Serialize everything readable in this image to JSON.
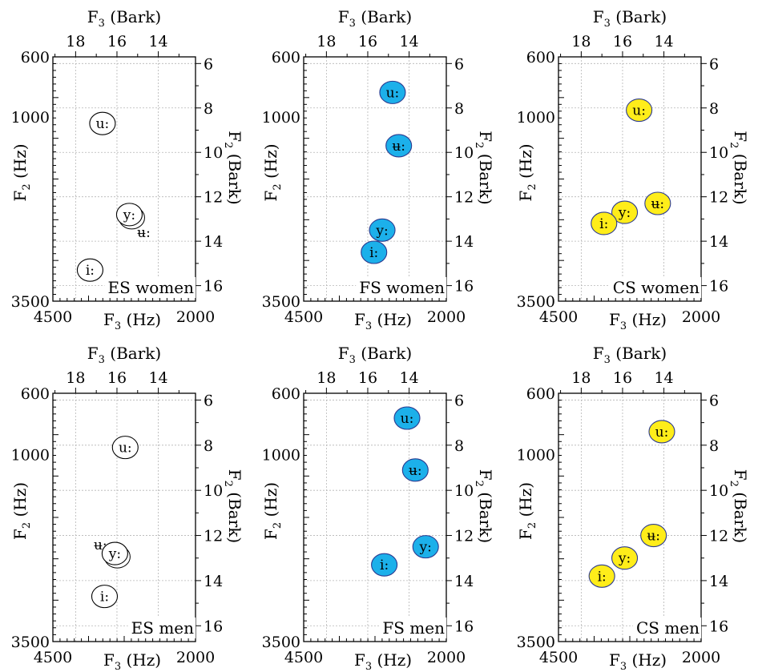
{
  "palette": {
    "ES": "#ffffff",
    "FS": "#1cb0ea",
    "CS": "#ffed1a",
    "edge_filled": "#2b3a8f",
    "edge_plain": "#000000"
  },
  "chart_data": [
    {
      "type": "scatter",
      "label": "ES women",
      "group": "ES",
      "x_title": "F",
      "x_sub": "3",
      "x_unit": " (Hz)",
      "x_top_title": "F",
      "x_top_sub": "3",
      "x_top_unit": " (Bark)",
      "y_title": "F",
      "y_sub": "2",
      "y_unit": " (Hz)",
      "y_right_title": "F",
      "y_right_sub": "2",
      "y_right_unit": " (Bark)",
      "x_ticks": [
        "4500",
        "2000"
      ],
      "y_ticks": [
        "600",
        "1000",
        "3500"
      ],
      "bark_top_ticks": [
        "18",
        "16",
        "14"
      ],
      "bark_right_ticks": [
        "6",
        "8",
        "10",
        "12",
        "14",
        "16"
      ],
      "bark_x_range": [
        19.1,
        12.2
      ],
      "bark_y_range": [
        5.7,
        16.7
      ],
      "points": [
        {
          "vowel": "u:",
          "f3_bark": 16.7,
          "f2_bark": 8.7,
          "marker": "ellipse"
        },
        {
          "vowel": "y:",
          "f3_bark": 15.4,
          "f2_bark": 12.8,
          "marker": "ellipse-double"
        },
        {
          "vowel": "ʉ:",
          "f3_bark": 14.7,
          "f2_bark": 13.6,
          "marker": "none"
        },
        {
          "vowel": "i:",
          "f3_bark": 17.3,
          "f2_bark": 15.3,
          "marker": "ellipse"
        }
      ]
    },
    {
      "type": "scatter",
      "label": "FS women",
      "group": "FS",
      "x_title": "F",
      "x_sub": "3",
      "x_unit": " (Hz)",
      "x_top_title": "F",
      "x_top_sub": "3",
      "x_top_unit": " (Bark)",
      "y_title": "F",
      "y_sub": "2",
      "y_unit": " (Hz)",
      "y_right_title": "F",
      "y_right_sub": "2",
      "y_right_unit": " (Bark)",
      "x_ticks": [
        "4500",
        "2000"
      ],
      "y_ticks": [
        "600",
        "1000",
        "3500"
      ],
      "bark_top_ticks": [
        "18",
        "16",
        "14"
      ],
      "bark_right_ticks": [
        "6",
        "8",
        "10",
        "12",
        "14",
        "16"
      ],
      "bark_x_range": [
        19.1,
        12.2
      ],
      "bark_y_range": [
        5.7,
        16.7
      ],
      "points": [
        {
          "vowel": "u:",
          "f3_bark": 14.8,
          "f2_bark": 7.3,
          "marker": "filled"
        },
        {
          "vowel": "ʉ:",
          "f3_bark": 14.5,
          "f2_bark": 9.7,
          "marker": "filled"
        },
        {
          "vowel": "y:",
          "f3_bark": 15.3,
          "f2_bark": 13.5,
          "marker": "filled"
        },
        {
          "vowel": "i:",
          "f3_bark": 15.7,
          "f2_bark": 14.5,
          "marker": "filled"
        }
      ]
    },
    {
      "type": "scatter",
      "label": "CS women",
      "group": "CS",
      "x_title": "F",
      "x_sub": "3",
      "x_unit": " (Hz)",
      "x_top_title": "F",
      "x_top_sub": "3",
      "x_top_unit": " (Bark)",
      "y_title": "F",
      "y_sub": "2",
      "y_unit": " (Hz)",
      "y_right_title": "F",
      "y_right_sub": "2",
      "y_right_unit": " (Bark)",
      "x_ticks": [
        "4500",
        "2000"
      ],
      "y_ticks": [
        "600",
        "1000",
        "3500"
      ],
      "bark_top_ticks": [
        "18",
        "16",
        "14"
      ],
      "bark_right_ticks": [
        "6",
        "8",
        "10",
        "12",
        "14",
        "16"
      ],
      "bark_x_range": [
        19.1,
        12.2
      ],
      "bark_y_range": [
        5.7,
        16.7
      ],
      "points": [
        {
          "vowel": "u:",
          "f3_bark": 15.2,
          "f2_bark": 8.1,
          "marker": "filled"
        },
        {
          "vowel": "ʉ:",
          "f3_bark": 14.3,
          "f2_bark": 12.3,
          "marker": "filled"
        },
        {
          "vowel": "y:",
          "f3_bark": 15.9,
          "f2_bark": 12.7,
          "marker": "filled"
        },
        {
          "vowel": "i:",
          "f3_bark": 16.9,
          "f2_bark": 13.2,
          "marker": "filled"
        }
      ]
    },
    {
      "type": "scatter",
      "label": "ES men",
      "group": "ES",
      "x_title": "F",
      "x_sub": "3",
      "x_unit": " (Hz)",
      "x_top_title": "F",
      "x_top_sub": "3",
      "x_top_unit": " (Bark)",
      "y_title": "F",
      "y_sub": "2",
      "y_unit": " (Hz)",
      "y_right_title": "F",
      "y_right_sub": "2",
      "y_right_unit": " (Bark)",
      "x_ticks": [
        "4500",
        "2000"
      ],
      "y_ticks": [
        "600",
        "1000",
        "3500"
      ],
      "bark_top_ticks": [
        "18",
        "16",
        "14"
      ],
      "bark_right_ticks": [
        "6",
        "8",
        "10",
        "12",
        "14",
        "16"
      ],
      "bark_x_range": [
        19.1,
        12.2
      ],
      "bark_y_range": [
        5.7,
        16.7
      ],
      "points": [
        {
          "vowel": "u:",
          "f3_bark": 15.6,
          "f2_bark": 8.1,
          "marker": "ellipse"
        },
        {
          "vowel": "ʉ:",
          "f3_bark": 16.8,
          "f2_bark": 12.4,
          "marker": "none"
        },
        {
          "vowel": "y:",
          "f3_bark": 16.1,
          "f2_bark": 12.8,
          "marker": "ellipse-double"
        },
        {
          "vowel": "i:",
          "f3_bark": 16.6,
          "f2_bark": 14.7,
          "marker": "ellipse"
        }
      ]
    },
    {
      "type": "scatter",
      "label": "FS men",
      "group": "FS",
      "x_title": "F",
      "x_sub": "3",
      "x_unit": " (Hz)",
      "x_top_title": "F",
      "x_top_sub": "3",
      "x_top_unit": " (Bark)",
      "y_title": "F",
      "y_sub": "2",
      "y_unit": " (Hz)",
      "y_right_title": "F",
      "y_right_sub": "2",
      "y_right_unit": " (Bark)",
      "x_ticks": [
        "4500",
        "2000"
      ],
      "y_ticks": [
        "600",
        "1000",
        "3500"
      ],
      "bark_top_ticks": [
        "18",
        "16",
        "14"
      ],
      "bark_right_ticks": [
        "6",
        "8",
        "10",
        "12",
        "14",
        "16"
      ],
      "bark_x_range": [
        19.1,
        12.2
      ],
      "bark_y_range": [
        5.7,
        16.7
      ],
      "points": [
        {
          "vowel": "u:",
          "f3_bark": 14.1,
          "f2_bark": 6.8,
          "marker": "filled"
        },
        {
          "vowel": "ʉ:",
          "f3_bark": 13.7,
          "f2_bark": 9.1,
          "marker": "filled"
        },
        {
          "vowel": "y:",
          "f3_bark": 13.2,
          "f2_bark": 12.5,
          "marker": "filled"
        },
        {
          "vowel": "i:",
          "f3_bark": 15.2,
          "f2_bark": 13.3,
          "marker": "filled"
        }
      ]
    },
    {
      "type": "scatter",
      "label": "CS men",
      "group": "CS",
      "x_title": "F",
      "x_sub": "3",
      "x_unit": " (Hz)",
      "x_top_title": "F",
      "x_top_sub": "3",
      "x_top_unit": " (Bark)",
      "y_title": "F",
      "y_sub": "2",
      "y_unit": " (Hz)",
      "y_right_title": "F",
      "y_right_sub": "2",
      "y_right_unit": " (Bark)",
      "x_ticks": [
        "4500",
        "2000"
      ],
      "y_ticks": [
        "600",
        "1000",
        "3500"
      ],
      "bark_top_ticks": [
        "18",
        "16",
        "14"
      ],
      "bark_right_ticks": [
        "6",
        "8",
        "10",
        "12",
        "14",
        "16"
      ],
      "bark_x_range": [
        19.1,
        12.2
      ],
      "bark_y_range": [
        5.7,
        16.7
      ],
      "points": [
        {
          "vowel": "u:",
          "f3_bark": 14.1,
          "f2_bark": 7.4,
          "marker": "filled"
        },
        {
          "vowel": "ʉ:",
          "f3_bark": 14.5,
          "f2_bark": 12.0,
          "marker": "filled"
        },
        {
          "vowel": "y:",
          "f3_bark": 15.9,
          "f2_bark": 13.0,
          "marker": "filled"
        },
        {
          "vowel": "i:",
          "f3_bark": 17.0,
          "f2_bark": 13.8,
          "marker": "filled"
        }
      ]
    }
  ]
}
